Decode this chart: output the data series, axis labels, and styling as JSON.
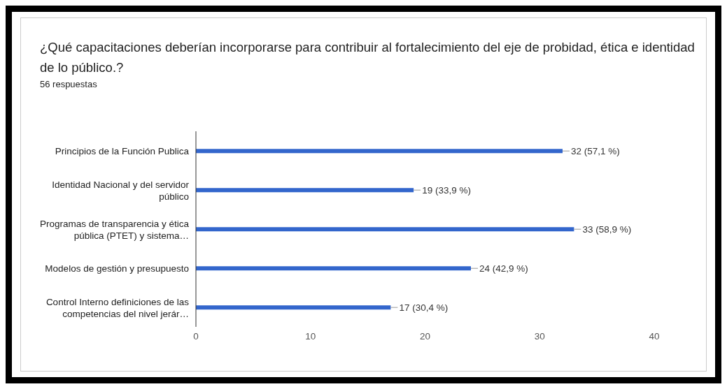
{
  "chart_data": {
    "type": "bar",
    "orientation": "horizontal",
    "title": "¿Qué capacitaciones deberían incorporarse para contribuir al fortalecimiento del eje de probidad, ética e identidad de lo público.?",
    "subtitle": "56 respuestas",
    "categories": [
      "Principios de la Función Publica",
      "Identidad Nacional y del servidor público",
      "Programas de transparencia y ética pública (PTET) y sistema…",
      "Modelos de gestión y presupuesto",
      "Control Interno definiciones de las competencias del nivel jerár…"
    ],
    "values": [
      32,
      19,
      33,
      24,
      17
    ],
    "value_labels": [
      "32 (57,1 %)",
      "19 (33,9 %)",
      "33 (58,9 %)",
      "24 (42,9 %)",
      "17 (30,4 %)"
    ],
    "color": "#3366cc",
    "xlim": [
      0,
      40
    ],
    "xticks": [
      0,
      10,
      20,
      30,
      40
    ],
    "grid": false,
    "legend": false
  }
}
